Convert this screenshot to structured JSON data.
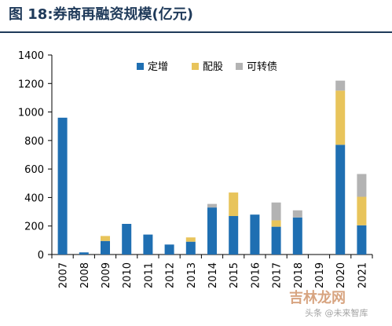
{
  "title": "图 18:券商再融资规模(亿元)",
  "chart_data": {
    "type": "bar",
    "stacked": true,
    "categories": [
      "2007",
      "2008",
      "2009",
      "2010",
      "2011",
      "2012",
      "2013",
      "2014",
      "2015",
      "2016",
      "2017",
      "2018",
      "2019",
      "2020",
      "2021"
    ],
    "series": [
      {
        "name": "定增",
        "color": "#1f6fb2",
        "values": [
          960,
          15,
          95,
          215,
          140,
          70,
          90,
          330,
          270,
          280,
          195,
          260,
          0,
          770,
          205
        ]
      },
      {
        "name": "配股",
        "color": "#e8c45b",
        "values": [
          0,
          0,
          35,
          0,
          0,
          0,
          30,
          0,
          165,
          0,
          45,
          0,
          0,
          380,
          200
        ]
      },
      {
        "name": "可转债",
        "color": "#b3b3b3",
        "values": [
          0,
          0,
          0,
          0,
          0,
          0,
          0,
          25,
          0,
          0,
          125,
          50,
          0,
          70,
          160
        ]
      }
    ],
    "ylim": [
      0,
      1400
    ],
    "yticks": [
      0,
      200,
      400,
      600,
      800,
      1000,
      1200,
      1400
    ],
    "legend_position": "top-right",
    "grid": false
  },
  "watermark": {
    "main": "吉林龙网",
    "sub": "头条 @未来智库"
  }
}
